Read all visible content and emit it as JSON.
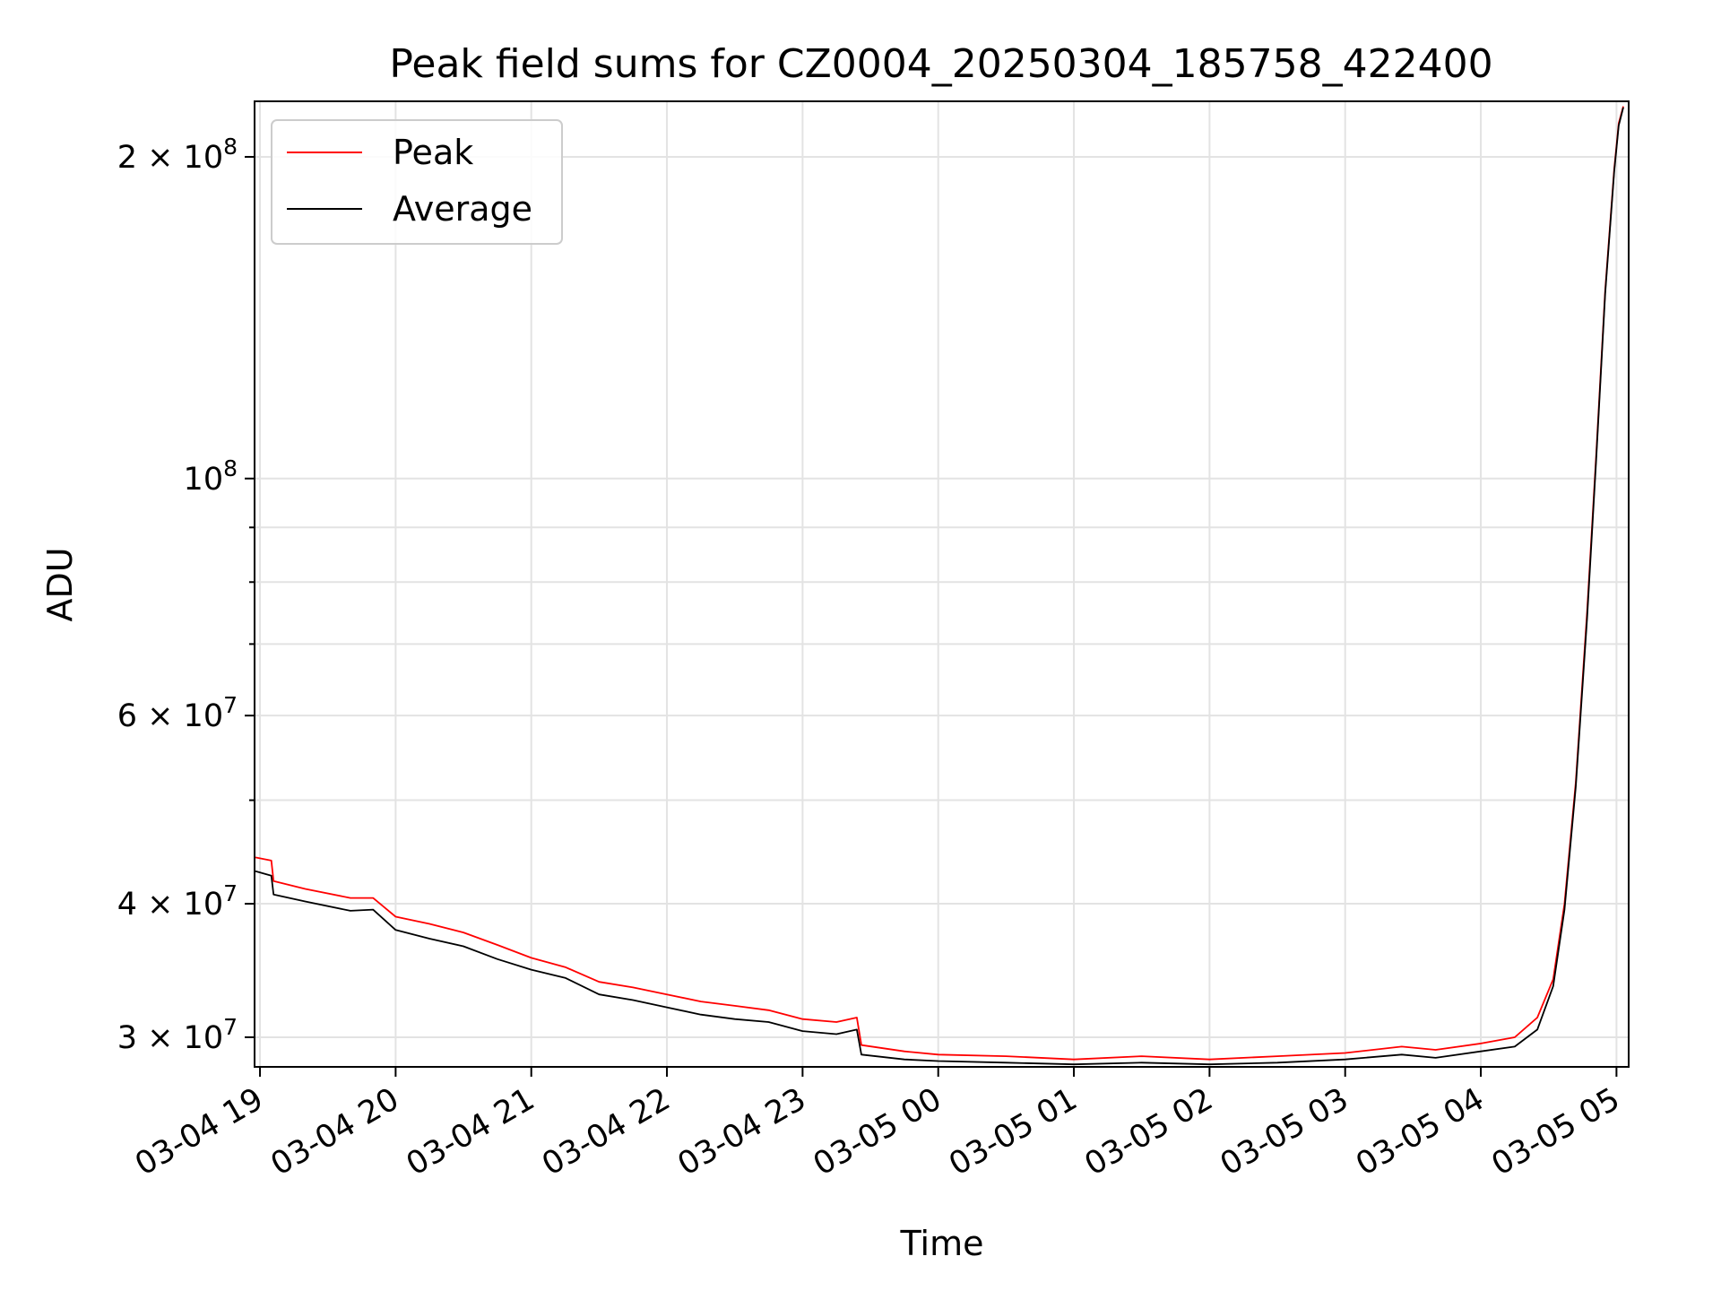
{
  "chart_data": {
    "type": "line",
    "title": "Peak field sums for CZ0004_20250304_185758_422400",
    "xlabel": "Time",
    "ylabel": "ADU",
    "yscale": "log",
    "ylim": [
      28200000,
      225000000
    ],
    "xlim": [
      "2025-03-04 18:58",
      "2025-03-05 05:05"
    ],
    "grid": true,
    "legend_placement": "upper-left",
    "x_ticks": [
      {
        "t": "2025-03-04 19:00",
        "label": "03-04 19"
      },
      {
        "t": "2025-03-04 20:00",
        "label": "03-04 20"
      },
      {
        "t": "2025-03-04 21:00",
        "label": "03-04 21"
      },
      {
        "t": "2025-03-04 22:00",
        "label": "03-04 22"
      },
      {
        "t": "2025-03-04 23:00",
        "label": "03-04 23"
      },
      {
        "t": "2025-03-05 00:00",
        "label": "03-05 00"
      },
      {
        "t": "2025-03-05 01:00",
        "label": "03-05 01"
      },
      {
        "t": "2025-03-05 02:00",
        "label": "03-05 02"
      },
      {
        "t": "2025-03-05 03:00",
        "label": "03-05 03"
      },
      {
        "t": "2025-03-05 04:00",
        "label": "03-05 04"
      },
      {
        "t": "2025-03-05 05:00",
        "label": "03-05 05"
      }
    ],
    "y_major_ticks": [
      {
        "value": 30000000,
        "mantissa": "3",
        "exp": "7"
      },
      {
        "value": 40000000,
        "mantissa": "4",
        "exp": "7"
      },
      {
        "value": 60000000,
        "mantissa": "6",
        "exp": "7"
      },
      {
        "value": 100000000,
        "mantissa": "",
        "exp": "8"
      },
      {
        "value": 200000000,
        "mantissa": "2",
        "exp": "8"
      }
    ],
    "y_minor_ticks": [
      50000000,
      70000000,
      80000000,
      90000000
    ],
    "series": [
      {
        "name": "Peak",
        "color": "#ff0000",
        "points": [
          [
            "2025-03-04 18:58",
            44200000
          ],
          [
            "2025-03-04 19:05",
            43900000
          ],
          [
            "2025-03-04 19:06",
            42000000
          ],
          [
            "2025-03-04 19:20",
            41300000
          ],
          [
            "2025-03-04 19:40",
            40500000
          ],
          [
            "2025-03-04 19:50",
            40500000
          ],
          [
            "2025-03-04 20:00",
            38900000
          ],
          [
            "2025-03-04 20:15",
            38300000
          ],
          [
            "2025-03-04 20:30",
            37600000
          ],
          [
            "2025-03-04 20:45",
            36600000
          ],
          [
            "2025-03-04 21:00",
            35600000
          ],
          [
            "2025-03-04 21:15",
            34900000
          ],
          [
            "2025-03-04 21:30",
            33800000
          ],
          [
            "2025-03-04 21:45",
            33400000
          ],
          [
            "2025-03-04 22:00",
            32900000
          ],
          [
            "2025-03-04 22:15",
            32400000
          ],
          [
            "2025-03-04 22:30",
            32100000
          ],
          [
            "2025-03-04 22:45",
            31800000
          ],
          [
            "2025-03-04 23:00",
            31200000
          ],
          [
            "2025-03-04 23:15",
            31000000
          ],
          [
            "2025-03-04 23:24",
            31300000
          ],
          [
            "2025-03-04 23:26",
            29500000
          ],
          [
            "2025-03-04 23:45",
            29100000
          ],
          [
            "2025-03-05 00:00",
            28900000
          ],
          [
            "2025-03-05 00:30",
            28800000
          ],
          [
            "2025-03-05 01:00",
            28600000
          ],
          [
            "2025-03-05 01:30",
            28800000
          ],
          [
            "2025-03-05 02:00",
            28600000
          ],
          [
            "2025-03-05 02:30",
            28800000
          ],
          [
            "2025-03-05 03:00",
            29000000
          ],
          [
            "2025-03-05 03:25",
            29400000
          ],
          [
            "2025-03-05 03:40",
            29200000
          ],
          [
            "2025-03-05 04:00",
            29600000
          ],
          [
            "2025-03-05 04:15",
            30000000
          ],
          [
            "2025-03-05 04:25",
            31300000
          ],
          [
            "2025-03-05 04:32",
            34000000
          ],
          [
            "2025-03-05 04:37",
            40000000
          ],
          [
            "2025-03-05 04:42",
            52000000
          ],
          [
            "2025-03-05 04:47",
            75000000
          ],
          [
            "2025-03-05 04:51",
            105000000
          ],
          [
            "2025-03-05 04:55",
            150000000
          ],
          [
            "2025-03-05 04:59",
            195000000
          ],
          [
            "2025-03-05 05:01",
            215000000
          ],
          [
            "2025-03-05 05:03",
            223000000
          ]
        ]
      },
      {
        "name": "Average",
        "color": "#000000",
        "points": [
          [
            "2025-03-04 18:58",
            42900000
          ],
          [
            "2025-03-04 19:05",
            42500000
          ],
          [
            "2025-03-04 19:06",
            40800000
          ],
          [
            "2025-03-04 19:20",
            40200000
          ],
          [
            "2025-03-04 19:40",
            39400000
          ],
          [
            "2025-03-04 19:50",
            39500000
          ],
          [
            "2025-03-04 20:00",
            37800000
          ],
          [
            "2025-03-04 20:15",
            37100000
          ],
          [
            "2025-03-04 20:30",
            36500000
          ],
          [
            "2025-03-04 20:45",
            35500000
          ],
          [
            "2025-03-04 21:00",
            34700000
          ],
          [
            "2025-03-04 21:15",
            34100000
          ],
          [
            "2025-03-04 21:30",
            32900000
          ],
          [
            "2025-03-04 21:45",
            32500000
          ],
          [
            "2025-03-04 22:00",
            32000000
          ],
          [
            "2025-03-04 22:15",
            31500000
          ],
          [
            "2025-03-04 22:30",
            31200000
          ],
          [
            "2025-03-04 22:45",
            31000000
          ],
          [
            "2025-03-04 23:00",
            30400000
          ],
          [
            "2025-03-04 23:15",
            30200000
          ],
          [
            "2025-03-04 23:24",
            30500000
          ],
          [
            "2025-03-04 23:26",
            28900000
          ],
          [
            "2025-03-04 23:45",
            28600000
          ],
          [
            "2025-03-05 00:00",
            28500000
          ],
          [
            "2025-03-05 00:30",
            28400000
          ],
          [
            "2025-03-05 01:00",
            28300000
          ],
          [
            "2025-03-05 01:30",
            28400000
          ],
          [
            "2025-03-05 02:00",
            28300000
          ],
          [
            "2025-03-05 02:30",
            28400000
          ],
          [
            "2025-03-05 03:00",
            28600000
          ],
          [
            "2025-03-05 03:25",
            28900000
          ],
          [
            "2025-03-05 03:40",
            28700000
          ],
          [
            "2025-03-05 04:00",
            29100000
          ],
          [
            "2025-03-05 04:15",
            29400000
          ],
          [
            "2025-03-05 04:25",
            30500000
          ],
          [
            "2025-03-05 04:32",
            33500000
          ],
          [
            "2025-03-05 04:37",
            39500000
          ],
          [
            "2025-03-05 04:42",
            51500000
          ],
          [
            "2025-03-05 04:47",
            74000000
          ],
          [
            "2025-03-05 04:51",
            104000000
          ],
          [
            "2025-03-05 04:55",
            149000000
          ],
          [
            "2025-03-05 04:59",
            194000000
          ],
          [
            "2025-03-05 05:01",
            214000000
          ],
          [
            "2025-03-05 05:03",
            222500000
          ]
        ]
      }
    ]
  }
}
